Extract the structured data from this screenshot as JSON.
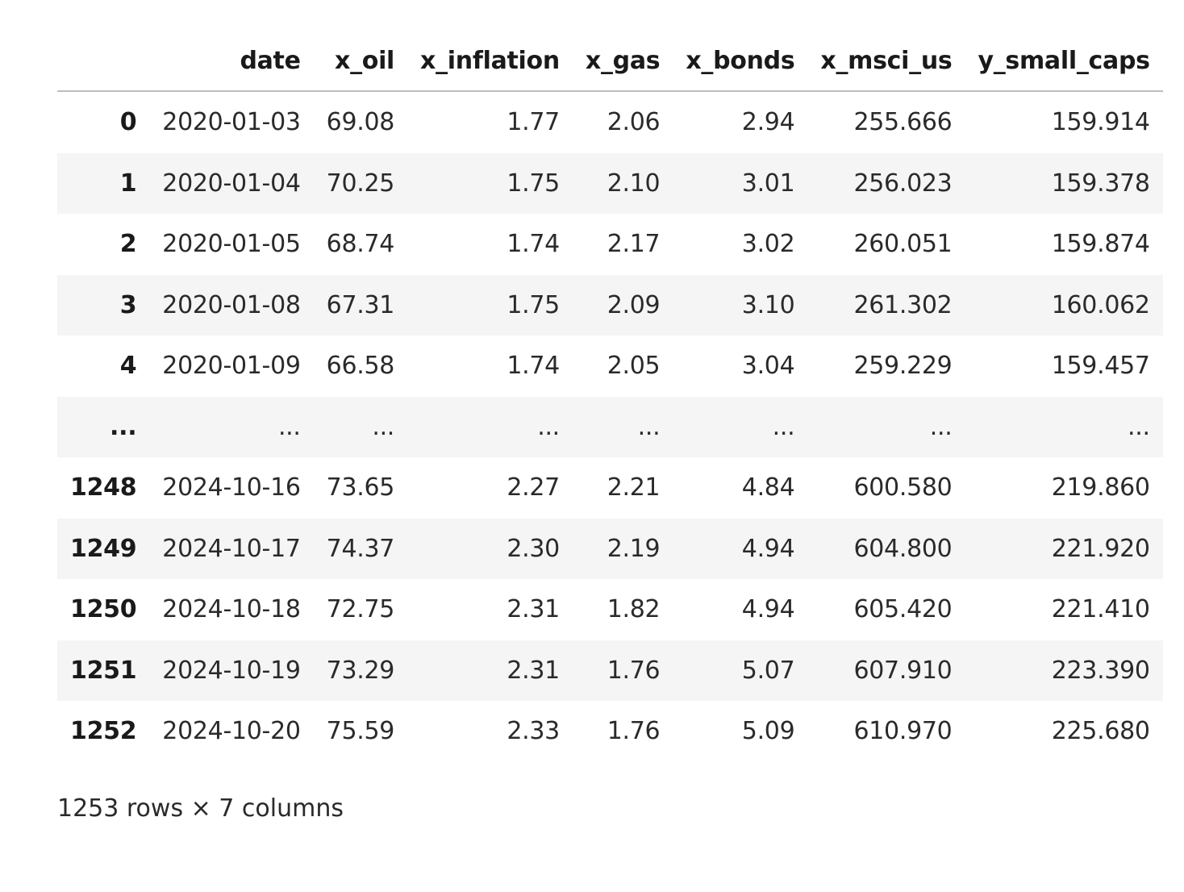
{
  "table": {
    "columns": [
      "",
      "date",
      "x_oil",
      "x_inflation",
      "x_gas",
      "x_bonds",
      "x_msci_us",
      "y_small_caps"
    ],
    "rows": [
      {
        "index": "0",
        "cells": [
          "2020-01-03",
          "69.08",
          "1.77",
          "2.06",
          "2.94",
          "255.666",
          "159.914"
        ]
      },
      {
        "index": "1",
        "cells": [
          "2020-01-04",
          "70.25",
          "1.75",
          "2.10",
          "3.01",
          "256.023",
          "159.378"
        ]
      },
      {
        "index": "2",
        "cells": [
          "2020-01-05",
          "68.74",
          "1.74",
          "2.17",
          "3.02",
          "260.051",
          "159.874"
        ]
      },
      {
        "index": "3",
        "cells": [
          "2020-01-08",
          "67.31",
          "1.75",
          "2.09",
          "3.10",
          "261.302",
          "160.062"
        ]
      },
      {
        "index": "4",
        "cells": [
          "2020-01-09",
          "66.58",
          "1.74",
          "2.05",
          "3.04",
          "259.229",
          "159.457"
        ]
      },
      {
        "index": "...",
        "cells": [
          "...",
          "...",
          "...",
          "...",
          "...",
          "...",
          "..."
        ]
      },
      {
        "index": "1248",
        "cells": [
          "2024-10-16",
          "73.65",
          "2.27",
          "2.21",
          "4.84",
          "600.580",
          "219.860"
        ]
      },
      {
        "index": "1249",
        "cells": [
          "2024-10-17",
          "74.37",
          "2.30",
          "2.19",
          "4.94",
          "604.800",
          "221.920"
        ]
      },
      {
        "index": "1250",
        "cells": [
          "2024-10-18",
          "72.75",
          "2.31",
          "1.82",
          "4.94",
          "605.420",
          "221.410"
        ]
      },
      {
        "index": "1251",
        "cells": [
          "2024-10-19",
          "73.29",
          "2.31",
          "1.76",
          "5.07",
          "607.910",
          "223.390"
        ]
      },
      {
        "index": "1252",
        "cells": [
          "2024-10-20",
          "75.59",
          "2.33",
          "1.76",
          "5.09",
          "610.970",
          "225.680"
        ]
      }
    ]
  },
  "shape_text": "1253 rows × 7 columns"
}
